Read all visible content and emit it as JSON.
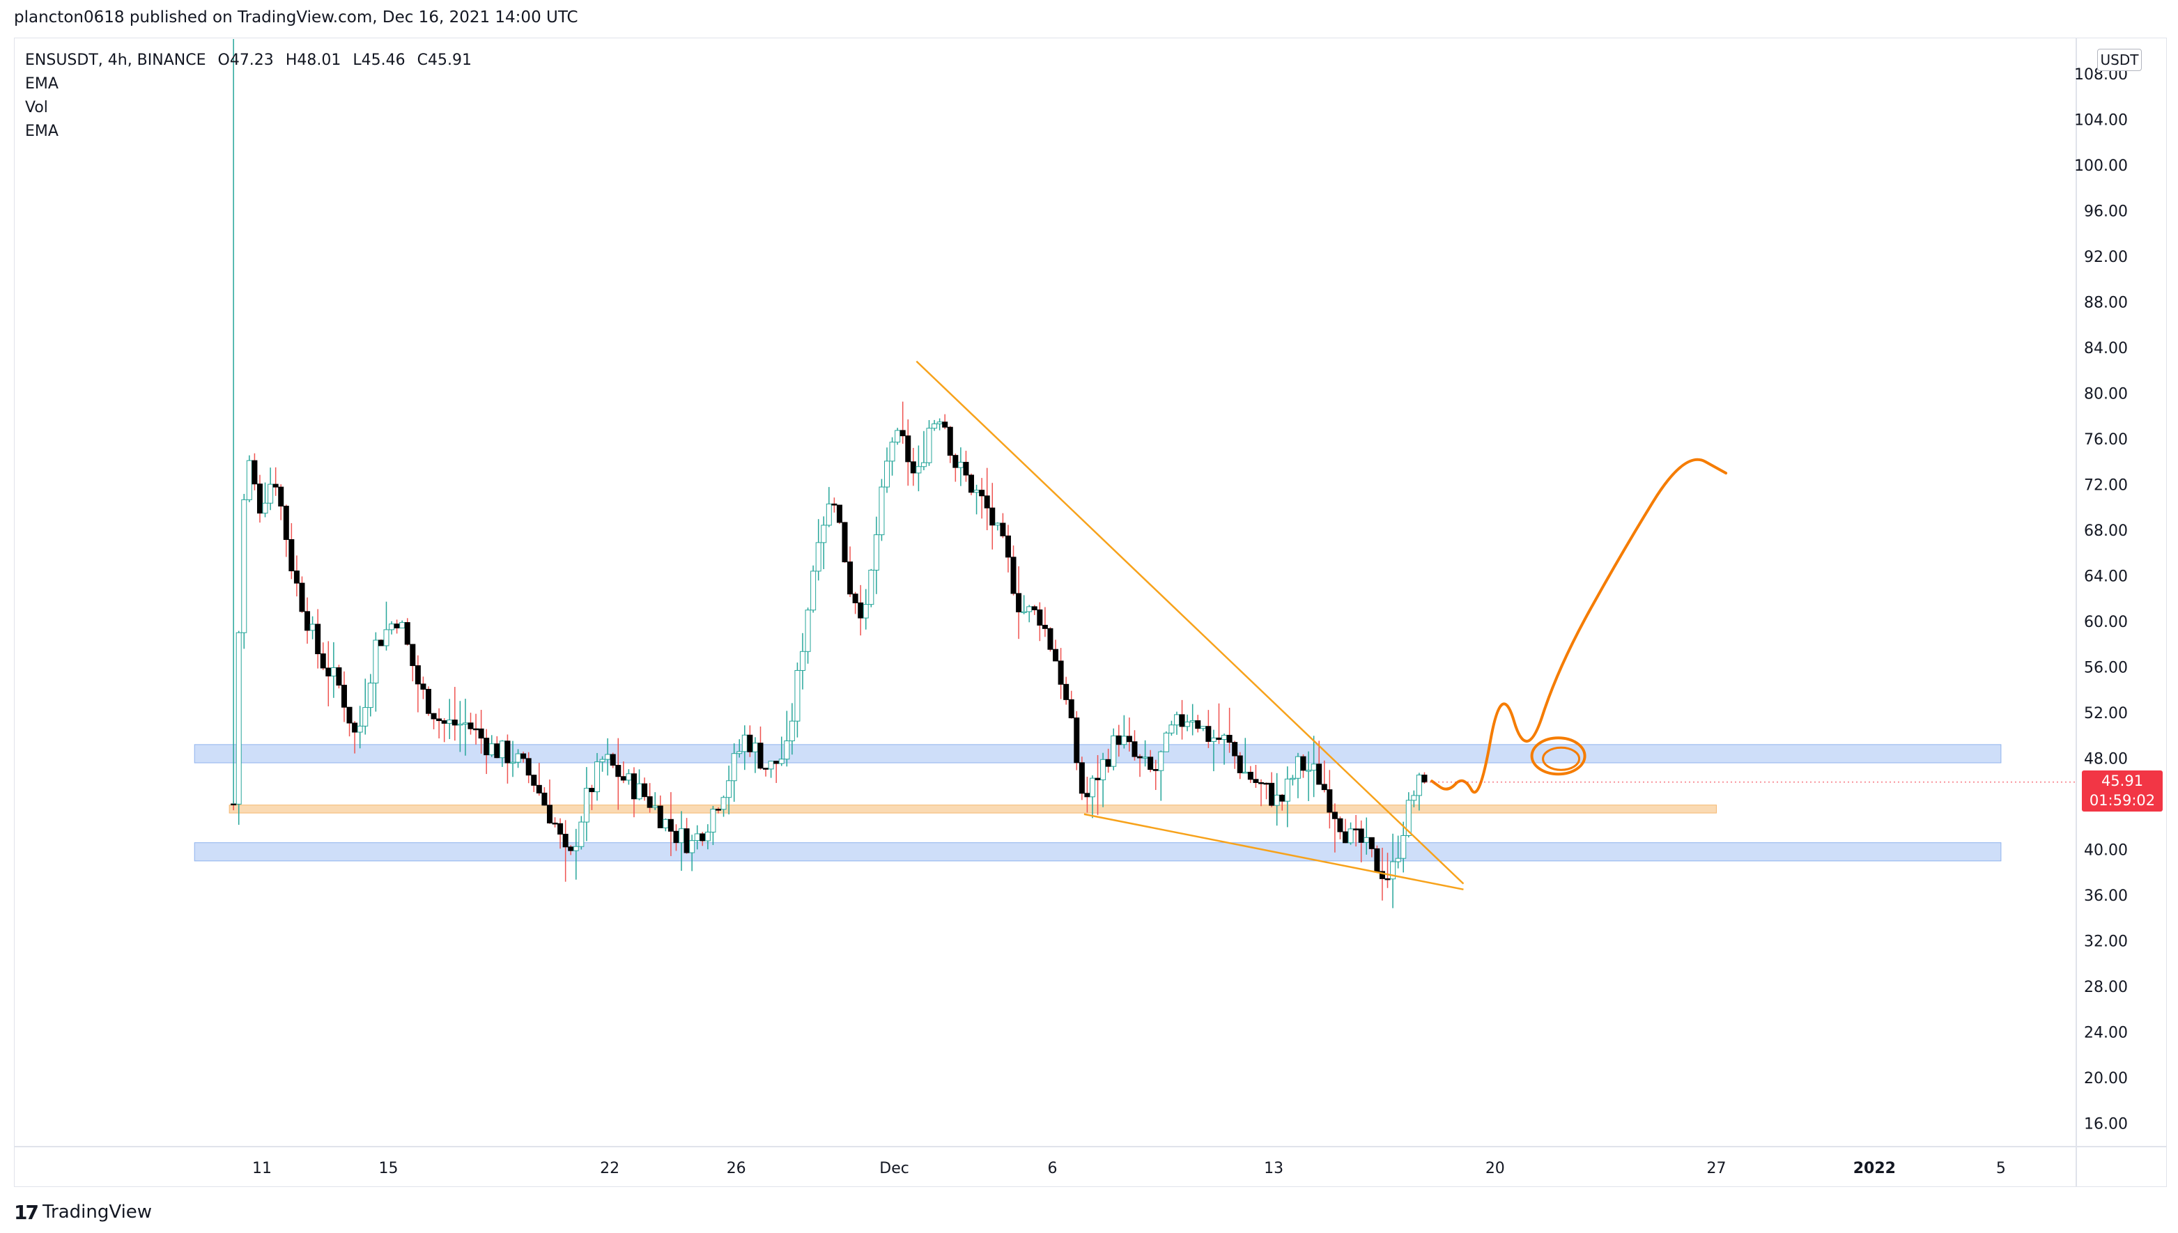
{
  "header": {
    "published_by": "plancton0618 published on TradingView.com, Dec 16, 2021 14:00 UTC"
  },
  "legend": {
    "symbol": "ENSUSDT, 4h, BINANCE",
    "open": "O47.23",
    "high": "H48.01",
    "low": "L45.46",
    "close": "C45.91",
    "indicators": [
      "EMA",
      "Vol",
      "EMA"
    ]
  },
  "price_scale": {
    "unit": "USDT",
    "last_price": "45.91",
    "countdown": "01:59:02"
  },
  "footer": {
    "brand": "TradingView"
  },
  "colors": {
    "up": "#26a69a",
    "down": "#ef5350",
    "body_down": "#000000",
    "trendline": "#f7a21b",
    "forecast": "#f57c00",
    "support_zone": "#aec8f5",
    "mid_zone": "#f9d3a6",
    "last_price": "#f23645"
  },
  "chart_data": {
    "type": "candlestick",
    "symbol": "ENSUSDT",
    "interval": "4h",
    "exchange": "BINANCE",
    "x_axis": {
      "ticks": [
        "11",
        "15",
        "22",
        "26",
        "Dec",
        "6",
        "13",
        "20",
        "27",
        "2022",
        "5"
      ],
      "tick_days": [
        11,
        15,
        22,
        26,
        31,
        36,
        43,
        50,
        57,
        62,
        66
      ]
    },
    "y_axis": {
      "ticks": [
        "16.00",
        "20.00",
        "24.00",
        "28.00",
        "32.00",
        "36.00",
        "40.00",
        "44.00",
        "48.00",
        "52.00",
        "56.00",
        "60.00",
        "64.00",
        "68.00",
        "72.00",
        "76.00",
        "80.00",
        "84.00",
        "88.00",
        "92.00",
        "96.00",
        "100.00",
        "104.00",
        "108.00"
      ],
      "range": [
        13,
        110
      ]
    },
    "price_path": {
      "note": "approximate close path, day index from Nov 1 2021",
      "points": [
        [
          10.1,
          44.0
        ],
        [
          10.25,
          58.0
        ],
        [
          10.5,
          75.0
        ],
        [
          10.9,
          70.0
        ],
        [
          11.4,
          73.0
        ],
        [
          12.0,
          64.0
        ],
        [
          12.8,
          57.0
        ],
        [
          13.5,
          54.0
        ],
        [
          14.0,
          49.5
        ],
        [
          14.6,
          58.0
        ],
        [
          15.3,
          60.5
        ],
        [
          16.0,
          54.0
        ],
        [
          16.7,
          51.0
        ],
        [
          17.5,
          51.0
        ],
        [
          18.2,
          49.0
        ],
        [
          19.0,
          48.0
        ],
        [
          19.6,
          46.0
        ],
        [
          20.3,
          42.0
        ],
        [
          20.7,
          38.5
        ],
        [
          21.2,
          44.0
        ],
        [
          21.8,
          48.0
        ],
        [
          22.5,
          46.0
        ],
        [
          23.2,
          44.5
        ],
        [
          24.0,
          41.5
        ],
        [
          24.6,
          40.5
        ],
        [
          25.1,
          42.5
        ],
        [
          25.7,
          46.0
        ],
        [
          26.3,
          50.0
        ],
        [
          27.0,
          47.0
        ],
        [
          27.6,
          48.5
        ],
        [
          28.2,
          60.0
        ],
        [
          28.6,
          68.0
        ],
        [
          29.1,
          71.0
        ],
        [
          29.6,
          63.0
        ],
        [
          30.1,
          60.5
        ],
        [
          30.5,
          69.0
        ],
        [
          30.9,
          76.0
        ],
        [
          31.3,
          75.5
        ],
        [
          31.7,
          72.0
        ],
        [
          32.1,
          77.0
        ],
        [
          32.5,
          78.5
        ],
        [
          32.9,
          74.0
        ],
        [
          33.4,
          72.0
        ],
        [
          33.9,
          70.0
        ],
        [
          34.5,
          66.0
        ],
        [
          35.0,
          61.0
        ],
        [
          35.6,
          60.5
        ],
        [
          36.2,
          56.0
        ],
        [
          36.6,
          50.5
        ],
        [
          37.0,
          44.0
        ],
        [
          37.5,
          47.0
        ],
        [
          38.1,
          50.0
        ],
        [
          38.6,
          48.0
        ],
        [
          39.2,
          46.5
        ],
        [
          39.8,
          50.5
        ],
        [
          40.4,
          52.0
        ],
        [
          40.9,
          50.0
        ],
        [
          41.5,
          49.5
        ],
        [
          42.0,
          47.0
        ],
        [
          42.6,
          45.5
        ],
        [
          43.2,
          44.0
        ],
        [
          43.8,
          47.5
        ],
        [
          44.4,
          46.5
        ],
        [
          45.0,
          43.0
        ],
        [
          45.4,
          41.0
        ],
        [
          45.8,
          40.5
        ],
        [
          46.3,
          38.5
        ],
        [
          46.7,
          37.5
        ],
        [
          47.1,
          42.0
        ],
        [
          47.5,
          45.5
        ],
        [
          47.8,
          45.91
        ]
      ]
    },
    "annotations": {
      "zones": [
        {
          "label": "upper-resistance-zone",
          "price_range": [
            47.6,
            49.2
          ],
          "x_range": [
            9.0,
            66.0
          ]
        },
        {
          "label": "mid-level-zone",
          "price_range": [
            43.2,
            43.9
          ],
          "x_range": [
            10.1,
            57.0
          ]
        },
        {
          "label": "lower-support-zone",
          "price_range": [
            39.0,
            40.6
          ],
          "x_range": [
            9.0,
            66.0
          ]
        }
      ],
      "falling_wedge": {
        "upper_line": [
          [
            31.7,
            82.8
          ],
          [
            49.0,
            37.0
          ]
        ],
        "lower_line": [
          [
            37.0,
            43.1
          ],
          [
            49.0,
            36.5
          ]
        ]
      },
      "forecast_path": [
        [
          48.0,
          46.0
        ],
        [
          48.5,
          45.0
        ],
        [
          49.0,
          46.5
        ],
        [
          49.5,
          44.0
        ],
        [
          50.2,
          55.0
        ],
        [
          51.0,
          47.5
        ],
        [
          52.0,
          56.0
        ],
        [
          54.0,
          66.0
        ],
        [
          56.0,
          75.0
        ],
        [
          57.3,
          73.0
        ]
      ],
      "circle_target": {
        "x": 52.0,
        "price": 48.2
      }
    }
  }
}
